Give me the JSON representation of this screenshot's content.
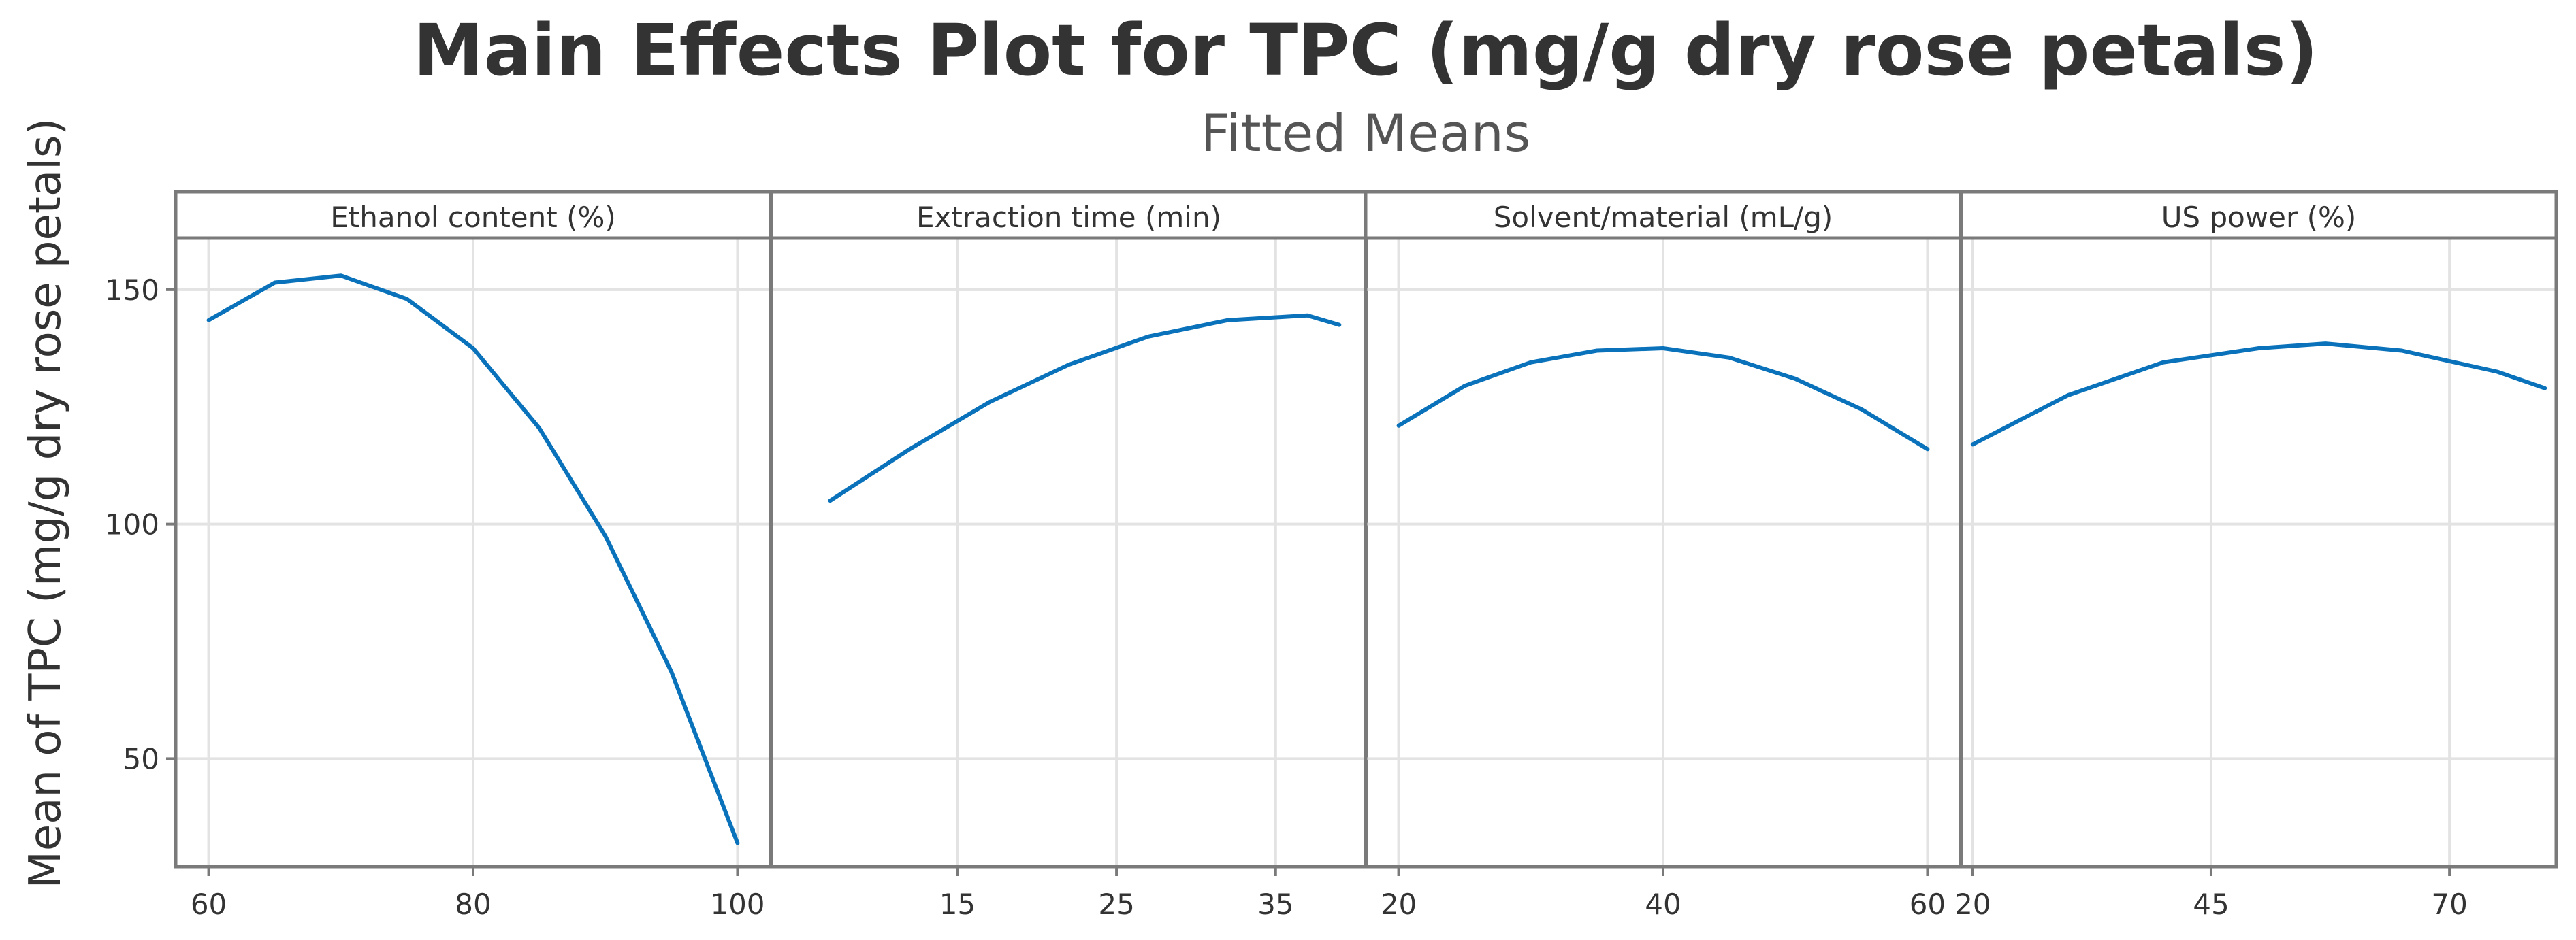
{
  "chart_data": {
    "type": "line",
    "title": "Main Effects Plot for TPC (mg/g dry rose petals)",
    "subtitle": "Fitted Means",
    "ylabel": "Mean of TPC (mg/g dry rose petals)",
    "ylim": [
      27,
      161
    ],
    "yticks": [
      50,
      100,
      150
    ],
    "grid": true,
    "line_color": "#0a72ba",
    "panels": [
      {
        "name": "Ethanol content (%)",
        "xlim": [
          57.5,
          102.5
        ],
        "xticks": [
          60,
          80,
          100
        ],
        "x": [
          60,
          65,
          70,
          75,
          80,
          85,
          90,
          95,
          100
        ],
        "y": [
          143.5,
          151.5,
          153,
          148,
          137.5,
          120.5,
          97.5,
          68.5,
          32
        ]
      },
      {
        "name": "Extraction time (min)",
        "xlim": [
          3.3,
          40.7
        ],
        "xticks": [
          15,
          25,
          35
        ],
        "x": [
          7,
          12,
          17,
          22,
          27,
          32,
          37,
          39
        ],
        "y": [
          105,
          116,
          126,
          134,
          140,
          143.5,
          144.5,
          142.5
        ]
      },
      {
        "name": "Solvent/material (mL/g)",
        "xlim": [
          17.5,
          62.5
        ],
        "xticks": [
          20,
          40,
          60
        ],
        "x": [
          20,
          25,
          30,
          35,
          40,
          45,
          50,
          55,
          60
        ],
        "y": [
          121,
          129.5,
          134.5,
          137,
          137.5,
          135.5,
          131,
          124.5,
          116
        ]
      },
      {
        "name": "US power (%)",
        "xlim": [
          18.8,
          81.2
        ],
        "xticks": [
          20,
          45,
          70
        ],
        "x": [
          20,
          30,
          40,
          50,
          57,
          65,
          75,
          80
        ],
        "y": [
          117,
          127.5,
          134.5,
          137.5,
          138.5,
          137,
          132.5,
          129
        ]
      }
    ]
  }
}
